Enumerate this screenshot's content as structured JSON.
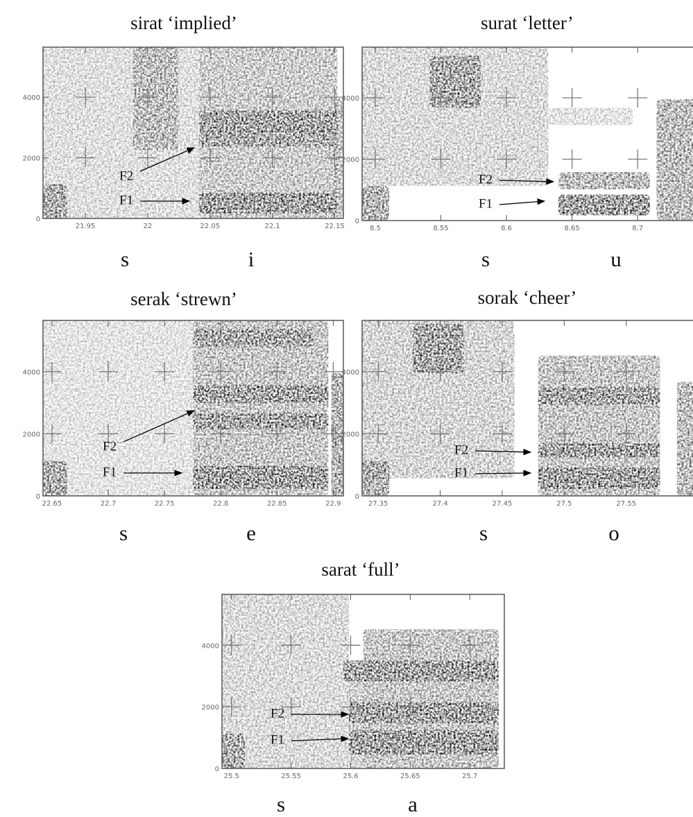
{
  "chart_data": [
    {
      "type": "spectrogram",
      "title": "sirat ‘implied’",
      "xlim": [
        21.916,
        22.157
      ],
      "xticks": [
        21.95,
        22,
        22.05,
        22.1,
        22.15
      ],
      "ylim": [
        0,
        5650
      ],
      "yticks": [
        0,
        2000,
        4000
      ],
      "segments": [
        "s",
        "i"
      ],
      "annotations": [
        "F2",
        "F1"
      ]
    },
    {
      "type": "spectrogram",
      "title": "surat ‘letter’",
      "xlim": [
        8.49,
        8.748
      ],
      "xticks": [
        8.5,
        8.55,
        8.6,
        8.65,
        8.7
      ],
      "ylim": [
        0,
        5650
      ],
      "yticks": [
        0,
        2000,
        4000
      ],
      "segments": [
        "s",
        "u"
      ],
      "annotations": [
        "F2",
        "F1"
      ]
    },
    {
      "type": "spectrogram",
      "title": "serak ‘strewn’",
      "xlim": [
        22.642,
        22.909
      ],
      "xticks": [
        22.65,
        22.7,
        22.75,
        22.8,
        22.85,
        22.9
      ],
      "ylim": [
        0,
        5650
      ],
      "yticks": [
        0,
        2000,
        4000
      ],
      "segments": [
        "s",
        "e"
      ],
      "annotations": [
        "F2",
        "F1"
      ]
    },
    {
      "type": "spectrogram",
      "title": "sorak ‘cheer’",
      "xlim": [
        27.337,
        27.61
      ],
      "xticks": [
        27.35,
        27.4,
        27.45,
        27.5,
        27.55
      ],
      "ylim": [
        0,
        5650
      ],
      "yticks": [
        0,
        2000,
        4000
      ],
      "segments": [
        "s",
        "o"
      ],
      "annotations": [
        "F2",
        "F1"
      ]
    },
    {
      "type": "spectrogram",
      "title": "sarat ‘full’",
      "xlim": [
        25.492,
        25.729
      ],
      "xticks": [
        25.5,
        25.55,
        25.6,
        25.65,
        25.7
      ],
      "ylim": [
        0,
        5650
      ],
      "yticks": [
        0,
        2000,
        4000
      ],
      "segments": [
        "s",
        "a"
      ],
      "annotations": [
        "F2",
        "F1"
      ]
    }
  ]
}
